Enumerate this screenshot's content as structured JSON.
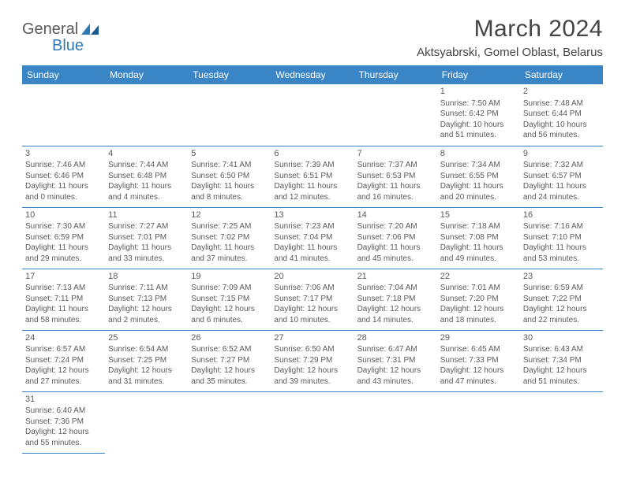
{
  "brand": {
    "part1": "General",
    "part2": "Blue"
  },
  "title": "March 2024",
  "location": "Aktsyabrski, Gomel Oblast, Belarus",
  "weekdays": [
    "Sunday",
    "Monday",
    "Tuesday",
    "Wednesday",
    "Thursday",
    "Friday",
    "Saturday"
  ],
  "colors": {
    "header_bg": "#3a85c6",
    "header_text": "#ffffff",
    "border": "#3a85c6",
    "brand_gray": "#5a5a5a",
    "brand_blue": "#2f78b7",
    "text": "#5a5a5a"
  },
  "grid": [
    [
      {
        "blank": true
      },
      {
        "blank": true
      },
      {
        "blank": true
      },
      {
        "blank": true
      },
      {
        "blank": true
      },
      {
        "day": "1",
        "sunrise": "Sunrise: 7:50 AM",
        "sunset": "Sunset: 6:42 PM",
        "daylight1": "Daylight: 10 hours",
        "daylight2": "and 51 minutes."
      },
      {
        "day": "2",
        "sunrise": "Sunrise: 7:48 AM",
        "sunset": "Sunset: 6:44 PM",
        "daylight1": "Daylight: 10 hours",
        "daylight2": "and 56 minutes."
      }
    ],
    [
      {
        "day": "3",
        "sunrise": "Sunrise: 7:46 AM",
        "sunset": "Sunset: 6:46 PM",
        "daylight1": "Daylight: 11 hours",
        "daylight2": "and 0 minutes."
      },
      {
        "day": "4",
        "sunrise": "Sunrise: 7:44 AM",
        "sunset": "Sunset: 6:48 PM",
        "daylight1": "Daylight: 11 hours",
        "daylight2": "and 4 minutes."
      },
      {
        "day": "5",
        "sunrise": "Sunrise: 7:41 AM",
        "sunset": "Sunset: 6:50 PM",
        "daylight1": "Daylight: 11 hours",
        "daylight2": "and 8 minutes."
      },
      {
        "day": "6",
        "sunrise": "Sunrise: 7:39 AM",
        "sunset": "Sunset: 6:51 PM",
        "daylight1": "Daylight: 11 hours",
        "daylight2": "and 12 minutes."
      },
      {
        "day": "7",
        "sunrise": "Sunrise: 7:37 AM",
        "sunset": "Sunset: 6:53 PM",
        "daylight1": "Daylight: 11 hours",
        "daylight2": "and 16 minutes."
      },
      {
        "day": "8",
        "sunrise": "Sunrise: 7:34 AM",
        "sunset": "Sunset: 6:55 PM",
        "daylight1": "Daylight: 11 hours",
        "daylight2": "and 20 minutes."
      },
      {
        "day": "9",
        "sunrise": "Sunrise: 7:32 AM",
        "sunset": "Sunset: 6:57 PM",
        "daylight1": "Daylight: 11 hours",
        "daylight2": "and 24 minutes."
      }
    ],
    [
      {
        "day": "10",
        "sunrise": "Sunrise: 7:30 AM",
        "sunset": "Sunset: 6:59 PM",
        "daylight1": "Daylight: 11 hours",
        "daylight2": "and 29 minutes."
      },
      {
        "day": "11",
        "sunrise": "Sunrise: 7:27 AM",
        "sunset": "Sunset: 7:01 PM",
        "daylight1": "Daylight: 11 hours",
        "daylight2": "and 33 minutes."
      },
      {
        "day": "12",
        "sunrise": "Sunrise: 7:25 AM",
        "sunset": "Sunset: 7:02 PM",
        "daylight1": "Daylight: 11 hours",
        "daylight2": "and 37 minutes."
      },
      {
        "day": "13",
        "sunrise": "Sunrise: 7:23 AM",
        "sunset": "Sunset: 7:04 PM",
        "daylight1": "Daylight: 11 hours",
        "daylight2": "and 41 minutes."
      },
      {
        "day": "14",
        "sunrise": "Sunrise: 7:20 AM",
        "sunset": "Sunset: 7:06 PM",
        "daylight1": "Daylight: 11 hours",
        "daylight2": "and 45 minutes."
      },
      {
        "day": "15",
        "sunrise": "Sunrise: 7:18 AM",
        "sunset": "Sunset: 7:08 PM",
        "daylight1": "Daylight: 11 hours",
        "daylight2": "and 49 minutes."
      },
      {
        "day": "16",
        "sunrise": "Sunrise: 7:16 AM",
        "sunset": "Sunset: 7:10 PM",
        "daylight1": "Daylight: 11 hours",
        "daylight2": "and 53 minutes."
      }
    ],
    [
      {
        "day": "17",
        "sunrise": "Sunrise: 7:13 AM",
        "sunset": "Sunset: 7:11 PM",
        "daylight1": "Daylight: 11 hours",
        "daylight2": "and 58 minutes."
      },
      {
        "day": "18",
        "sunrise": "Sunrise: 7:11 AM",
        "sunset": "Sunset: 7:13 PM",
        "daylight1": "Daylight: 12 hours",
        "daylight2": "and 2 minutes."
      },
      {
        "day": "19",
        "sunrise": "Sunrise: 7:09 AM",
        "sunset": "Sunset: 7:15 PM",
        "daylight1": "Daylight: 12 hours",
        "daylight2": "and 6 minutes."
      },
      {
        "day": "20",
        "sunrise": "Sunrise: 7:06 AM",
        "sunset": "Sunset: 7:17 PM",
        "daylight1": "Daylight: 12 hours",
        "daylight2": "and 10 minutes."
      },
      {
        "day": "21",
        "sunrise": "Sunrise: 7:04 AM",
        "sunset": "Sunset: 7:18 PM",
        "daylight1": "Daylight: 12 hours",
        "daylight2": "and 14 minutes."
      },
      {
        "day": "22",
        "sunrise": "Sunrise: 7:01 AM",
        "sunset": "Sunset: 7:20 PM",
        "daylight1": "Daylight: 12 hours",
        "daylight2": "and 18 minutes."
      },
      {
        "day": "23",
        "sunrise": "Sunrise: 6:59 AM",
        "sunset": "Sunset: 7:22 PM",
        "daylight1": "Daylight: 12 hours",
        "daylight2": "and 22 minutes."
      }
    ],
    [
      {
        "day": "24",
        "sunrise": "Sunrise: 6:57 AM",
        "sunset": "Sunset: 7:24 PM",
        "daylight1": "Daylight: 12 hours",
        "daylight2": "and 27 minutes."
      },
      {
        "day": "25",
        "sunrise": "Sunrise: 6:54 AM",
        "sunset": "Sunset: 7:25 PM",
        "daylight1": "Daylight: 12 hours",
        "daylight2": "and 31 minutes."
      },
      {
        "day": "26",
        "sunrise": "Sunrise: 6:52 AM",
        "sunset": "Sunset: 7:27 PM",
        "daylight1": "Daylight: 12 hours",
        "daylight2": "and 35 minutes."
      },
      {
        "day": "27",
        "sunrise": "Sunrise: 6:50 AM",
        "sunset": "Sunset: 7:29 PM",
        "daylight1": "Daylight: 12 hours",
        "daylight2": "and 39 minutes."
      },
      {
        "day": "28",
        "sunrise": "Sunrise: 6:47 AM",
        "sunset": "Sunset: 7:31 PM",
        "daylight1": "Daylight: 12 hours",
        "daylight2": "and 43 minutes."
      },
      {
        "day": "29",
        "sunrise": "Sunrise: 6:45 AM",
        "sunset": "Sunset: 7:33 PM",
        "daylight1": "Daylight: 12 hours",
        "daylight2": "and 47 minutes."
      },
      {
        "day": "30",
        "sunrise": "Sunrise: 6:43 AM",
        "sunset": "Sunset: 7:34 PM",
        "daylight1": "Daylight: 12 hours",
        "daylight2": "and 51 minutes."
      }
    ],
    [
      {
        "day": "31",
        "sunrise": "Sunrise: 6:40 AM",
        "sunset": "Sunset: 7:36 PM",
        "daylight1": "Daylight: 12 hours",
        "daylight2": "and 55 minutes."
      },
      {
        "blank": true,
        "tail": true
      },
      {
        "blank": true,
        "tail": true
      },
      {
        "blank": true,
        "tail": true
      },
      {
        "blank": true,
        "tail": true
      },
      {
        "blank": true,
        "tail": true
      },
      {
        "blank": true,
        "tail": true
      }
    ]
  ]
}
